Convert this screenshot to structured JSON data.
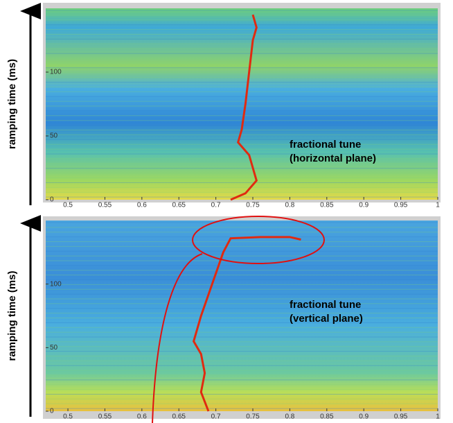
{
  "chart_data": [
    {
      "type": "line",
      "y_label": "ramping time (ms)",
      "annotation": [
        "fractional tune",
        "(horizontal plane)"
      ],
      "x": [
        0.72,
        0.74,
        0.755,
        0.75,
        0.745,
        0.73,
        0.735,
        0.74,
        0.745,
        0.75,
        0.755,
        0.75
      ],
      "values": [
        0,
        5,
        15,
        25,
        35,
        45,
        55,
        75,
        100,
        125,
        135,
        145
      ],
      "color": "#e02a10",
      "xlim": [
        0.47,
        1
      ],
      "xticks": [
        0.5,
        0.55,
        0.6,
        0.65,
        0.7,
        0.75,
        0.8,
        0.85,
        0.9,
        0.95,
        1
      ],
      "ylim": [
        0,
        150
      ],
      "yticks": [
        0,
        50,
        100
      ]
    },
    {
      "type": "line",
      "y_label": "ramping time (ms)",
      "annotation": [
        "fractional tune",
        "(vertical plane)"
      ],
      "x": [
        0.69,
        0.68,
        0.685,
        0.68,
        0.67,
        0.68,
        0.695,
        0.71,
        0.72,
        0.76,
        0.8,
        0.815
      ],
      "values": [
        0,
        15,
        30,
        45,
        55,
        75,
        100,
        125,
        136,
        137,
        137,
        135
      ],
      "color": "#e02a10",
      "xlim": [
        0.47,
        1
      ],
      "xticks": [
        0.5,
        0.55,
        0.6,
        0.65,
        0.7,
        0.75,
        0.8,
        0.85,
        0.9,
        0.95,
        1
      ],
      "ylim": [
        0,
        150
      ],
      "yticks": [
        0,
        50,
        100
      ]
    }
  ]
}
